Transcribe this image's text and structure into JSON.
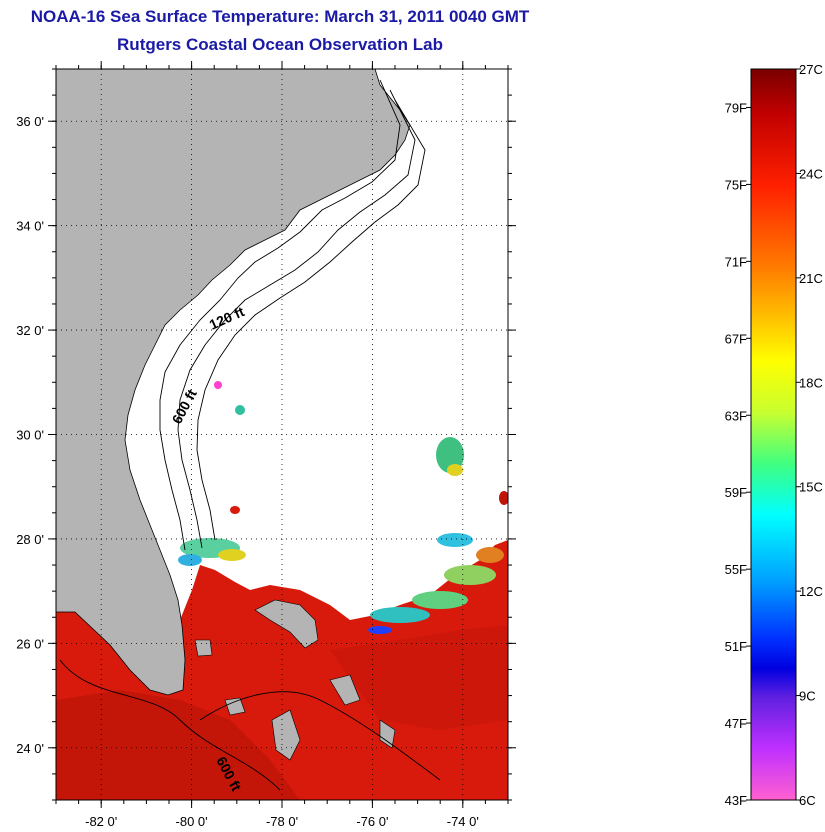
{
  "header": {
    "title": "NOAA-16 Sea Surface Temperature:  March 31, 2011 0040 GMT",
    "subtitle": "Rutgers Coastal Ocean Observation Lab"
  },
  "map": {
    "lat_ticks": [
      {
        "value": 36,
        "label": "36 0'"
      },
      {
        "value": 34,
        "label": "34 0'"
      },
      {
        "value": 32,
        "label": "32 0'"
      },
      {
        "value": 30,
        "label": "30 0'"
      },
      {
        "value": 28,
        "label": "28 0'"
      },
      {
        "value": 26,
        "label": "26 0'"
      },
      {
        "value": 24,
        "label": "24 0'"
      }
    ],
    "lon_ticks": [
      {
        "value": -82,
        "label": "-82 0'"
      },
      {
        "value": -80,
        "label": "-80 0'"
      },
      {
        "value": -78,
        "label": "-78 0'"
      },
      {
        "value": -76,
        "label": "-76 0'"
      },
      {
        "value": -74,
        "label": "-74 0'"
      }
    ],
    "lat_range": [
      23,
      37
    ],
    "lon_range": [
      -83,
      -73
    ],
    "contour_labels": [
      "120 ft",
      "600 ft",
      "600 ft"
    ],
    "colors": {
      "land": "#b4b4b4",
      "sst_warm": "#d81a0c",
      "cloud": "#ffffff"
    }
  },
  "colorbar": {
    "fahrenheit": [
      "79F",
      "75F",
      "71F",
      "67F",
      "63F",
      "59F",
      "55F",
      "51F",
      "47F",
      "43F"
    ],
    "celsius": [
      "27C",
      "24C",
      "21C",
      "18C",
      "15C",
      "12C",
      "9C",
      "6C"
    ],
    "range_c": [
      6,
      27
    ],
    "range_f": [
      43,
      81
    ]
  }
}
